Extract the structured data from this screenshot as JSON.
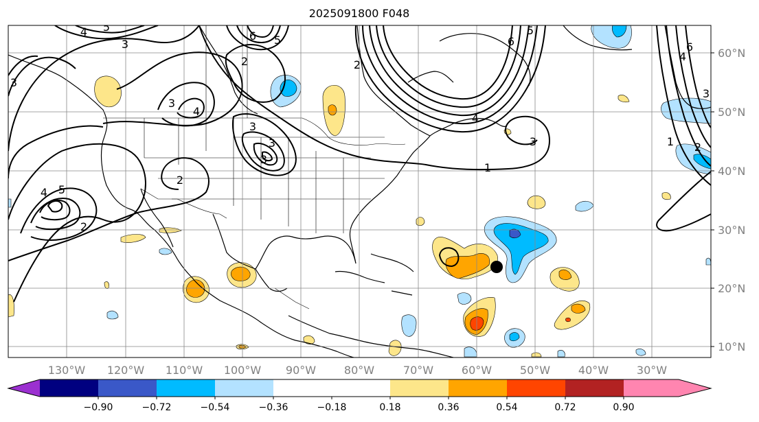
{
  "title": "2025091800 F048",
  "map": {
    "lon_labels": [
      "130°W",
      "120°W",
      "110°W",
      "100°W",
      "90°W",
      "80°W",
      "70°W",
      "60°W",
      "50°W",
      "40°W",
      "30°W"
    ],
    "lat_labels": [
      "60°N",
      "50°N",
      "40°N",
      "30°N",
      "20°N",
      "10°N"
    ],
    "contour_labels": [
      "4",
      "5",
      "3",
      "6",
      "5",
      "2",
      "4",
      "3",
      "3",
      "3",
      "3",
      "3",
      "2",
      "5",
      "4",
      "2",
      "1",
      "6",
      "5",
      "4",
      "3",
      "2",
      "6",
      "4",
      "3",
      "2",
      "1"
    ]
  },
  "colorbar": {
    "ticks": [
      "−0.90",
      "−0.72",
      "−0.54",
      "−0.36",
      "−0.18",
      "0.18",
      "0.36",
      "0.54",
      "0.72",
      "0.90"
    ],
    "colors": [
      "#9b30d0",
      "#000080",
      "#3a58c8",
      "#00bbff",
      "#b3e2ff",
      "#ffffff",
      "#fde68a",
      "#ffa500",
      "#ff4500",
      "#b22222",
      "#ff85b0"
    ]
  },
  "marker": {
    "type": "black-dot"
  }
}
